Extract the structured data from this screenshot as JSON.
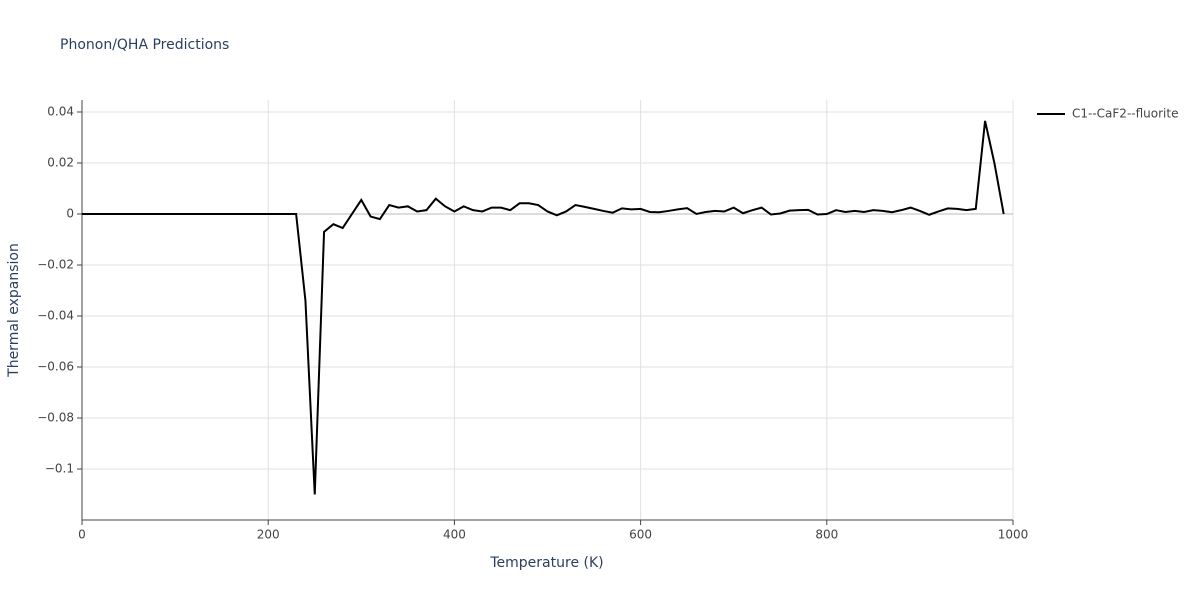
{
  "chart_data": {
    "type": "line",
    "title": "Phonon/QHA Predictions",
    "x_label": "Temperature (K)",
    "y_label": "Thermal expansion",
    "x": [
      0,
      10,
      20,
      30,
      40,
      50,
      60,
      70,
      80,
      90,
      100,
      110,
      120,
      130,
      140,
      150,
      160,
      170,
      180,
      190,
      200,
      210,
      220,
      230,
      240,
      250,
      260,
      270,
      280,
      290,
      300,
      310,
      320,
      330,
      340,
      350,
      360,
      370,
      380,
      390,
      400,
      410,
      420,
      430,
      440,
      450,
      460,
      470,
      480,
      490,
      500,
      510,
      520,
      530,
      540,
      550,
      560,
      570,
      580,
      590,
      600,
      610,
      620,
      630,
      640,
      650,
      660,
      670,
      680,
      690,
      700,
      710,
      720,
      730,
      740,
      750,
      760,
      770,
      780,
      790,
      800,
      810,
      820,
      830,
      840,
      850,
      860,
      870,
      880,
      890,
      900,
      910,
      920,
      930,
      940,
      950,
      960,
      970,
      980,
      990
    ],
    "series": [
      {
        "name": "C1--CaF2--fluorite",
        "color": "#000000",
        "values": [
          0,
          0,
          0,
          0,
          0,
          0,
          0,
          0,
          0,
          0,
          0,
          0,
          0,
          0,
          0,
          0,
          0,
          0,
          0,
          0,
          0,
          0,
          0,
          0,
          -0.034,
          -0.11,
          -0.007,
          -0.004,
          -0.0055,
          0,
          0.0055,
          -0.001,
          -0.002,
          0.0035,
          0.0025,
          0.003,
          0.001,
          0.0015,
          0.006,
          0.003,
          0.001,
          0.003,
          0.0015,
          0.001,
          0.0025,
          0.0025,
          0.0015,
          0.0042,
          0.0042,
          0.0035,
          0.001,
          -0.0005,
          0.001,
          0.0035,
          0.0028,
          0.002,
          0.0012,
          0.0005,
          0.0022,
          0.0018,
          0.002,
          0.0008,
          0.0007,
          0.0012,
          0.0018,
          0.0023,
          0,
          0.0008,
          0.0012,
          0.001,
          0.0025,
          0.0003,
          0.0015,
          0.0025,
          -0.0002,
          0.0002,
          0.0013,
          0.0015,
          0.0016,
          -0.0002,
          0,
          0.0015,
          0.0008,
          0.0012,
          0.0008,
          0.0015,
          0.0012,
          0.0007,
          0.0015,
          0.0025,
          0.0012,
          -0.0003,
          0.001,
          0.0022,
          0.002,
          0.0015,
          0.002,
          0.0365,
          0.02,
          0
        ]
      }
    ],
    "xlim": [
      0,
      1000
    ],
    "xticks": [
      0,
      200,
      400,
      600,
      800,
      1000
    ],
    "ylim": [
      -0.12,
      0.0447
    ],
    "yticks": [
      0.04,
      0.02,
      0,
      {
        "value": -0.02,
        "label": "−0.02"
      },
      {
        "value": -0.04,
        "label": "−0.04"
      },
      {
        "value": -0.06,
        "label": "−0.06"
      },
      {
        "value": -0.08,
        "label": "−0.08"
      },
      {
        "value": -0.1,
        "label": "−0.1"
      }
    ],
    "grid": true,
    "legend": "top-right"
  }
}
